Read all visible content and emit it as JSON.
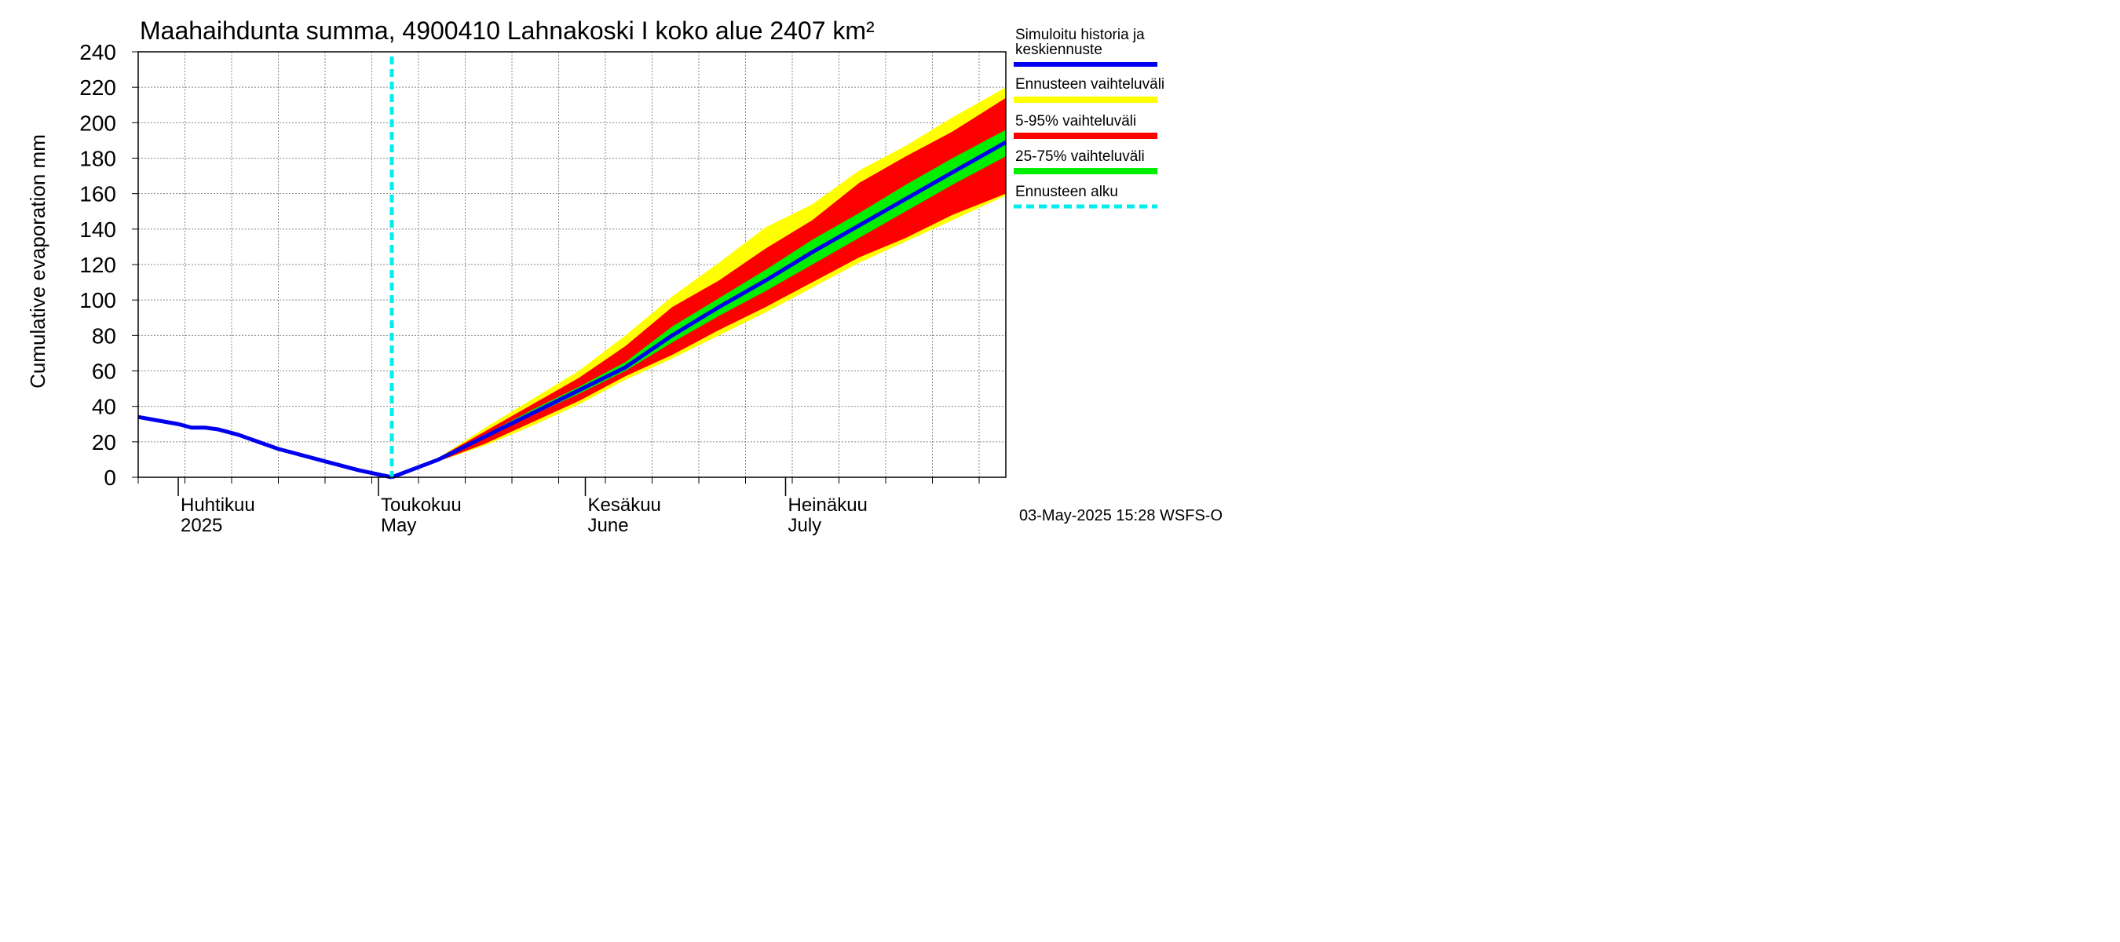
{
  "chart_data": {
    "type": "area",
    "title": "Maahaihdunta summa, 4900410 Lahnakoski I koko alue 2407 km²",
    "ylabel": "Cumulative evaporation   mm",
    "ylim": [
      0,
      240
    ],
    "yticks": [
      0,
      20,
      40,
      60,
      80,
      100,
      120,
      140,
      160,
      180,
      200,
      220,
      240
    ],
    "xlim": [
      "2025-03-26",
      "2025-08-03"
    ],
    "month_labels": [
      {
        "date": "2025-04-01",
        "fi": "Huhtikuu",
        "en": "2025"
      },
      {
        "date": "2025-05-01",
        "fi": "Toukokuu",
        "en": "May"
      },
      {
        "date": "2025-06-01",
        "fi": "Kesäkuu",
        "en": "June"
      },
      {
        "date": "2025-07-01",
        "fi": "Heinäkuu",
        "en": "July"
      }
    ],
    "forecast_start": "2025-05-03",
    "history": {
      "x": [
        "2025-03-26",
        "2025-03-29",
        "2025-04-01",
        "2025-04-03",
        "2025-04-05",
        "2025-04-07",
        "2025-04-10",
        "2025-04-13",
        "2025-04-16",
        "2025-04-19",
        "2025-04-22",
        "2025-04-25",
        "2025-04-28",
        "2025-05-03"
      ],
      "y": [
        34,
        32,
        30,
        28,
        28,
        27,
        24,
        20,
        16,
        13,
        10,
        7,
        4,
        0
      ]
    },
    "forecast_x": [
      "2025-05-03",
      "2025-05-10",
      "2025-05-17",
      "2025-05-24",
      "2025-05-31",
      "2025-06-07",
      "2025-06-14",
      "2025-06-21",
      "2025-06-28",
      "2025-07-05",
      "2025-07-12",
      "2025-07-19",
      "2025-07-26",
      "2025-08-03"
    ],
    "series": [
      {
        "name": "Simuloitu historia ja keskiennuste",
        "color": "#0000ee",
        "values": [
          0,
          10,
          23,
          36,
          49,
          62,
          80,
          96,
          111,
          127,
          142,
          157,
          172,
          189
        ]
      },
      {
        "name": "Ennusteen vaihteluväli",
        "color": "#ffff00",
        "low": [
          0,
          9,
          18,
          29,
          41,
          55,
          67,
          80,
          93,
          107,
          121,
          133,
          145,
          159
        ],
        "high": [
          0,
          11,
          28,
          44,
          60,
          80,
          102,
          121,
          141,
          154,
          173,
          187,
          203,
          220
        ]
      },
      {
        "name": "5-95% vaihteluväli",
        "color": "#ff0000",
        "low": [
          0,
          9,
          19,
          31,
          43,
          57,
          69,
          83,
          96,
          110,
          124,
          135,
          148,
          160
        ],
        "high": [
          0,
          11,
          26,
          41,
          56,
          74,
          96,
          111,
          129,
          145,
          166,
          181,
          195,
          214
        ]
      },
      {
        "name": "25-75% vaihteluväli",
        "color": "#00ee00",
        "low": [
          0,
          10,
          22,
          35,
          47,
          60,
          76,
          91,
          105,
          120,
          135,
          150,
          165,
          181
        ],
        "high": [
          0,
          10,
          24,
          38,
          51,
          65,
          85,
          101,
          117,
          134,
          149,
          165,
          180,
          196
        ]
      }
    ],
    "legend_extra": {
      "name": "Ennusteen alku",
      "color": "#00eeee"
    },
    "legend_title_lines": [
      "Simuloitu historia ja",
      "keskiennuste"
    ],
    "legend_placement": "right",
    "grid": true,
    "timestamp": "03-May-2025 15:28 WSFS-O"
  }
}
